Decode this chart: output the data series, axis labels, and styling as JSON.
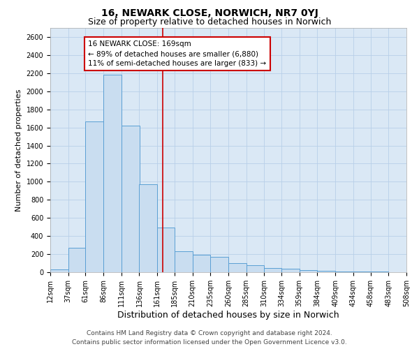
{
  "title": "16, NEWARK CLOSE, NORWICH, NR7 0YJ",
  "subtitle": "Size of property relative to detached houses in Norwich",
  "xlabel": "Distribution of detached houses by size in Norwich",
  "ylabel": "Number of detached properties",
  "footer1": "Contains HM Land Registry data © Crown copyright and database right 2024.",
  "footer2": "Contains public sector information licensed under the Open Government Licence v3.0.",
  "annotation_line1": "16 NEWARK CLOSE: 169sqm",
  "annotation_line2": "← 89% of detached houses are smaller (6,880)",
  "annotation_line3": "11% of semi-detached houses are larger (833) →",
  "bar_left_edges": [
    12,
    37,
    61,
    86,
    111,
    136,
    161,
    185,
    210,
    235,
    260,
    285,
    310,
    334,
    359,
    384,
    409,
    434,
    458,
    483
  ],
  "bar_widths": [
    25,
    24,
    25,
    25,
    25,
    25,
    24,
    25,
    25,
    25,
    25,
    25,
    24,
    25,
    25,
    25,
    25,
    24,
    25,
    25
  ],
  "bar_heights": [
    30,
    270,
    1670,
    2180,
    1620,
    970,
    490,
    230,
    190,
    170,
    100,
    80,
    45,
    35,
    25,
    15,
    10,
    8,
    5,
    3
  ],
  "bar_facecolor": "#c9ddf0",
  "bar_edgecolor": "#5a9fd4",
  "bar_linewidth": 0.7,
  "grid_color": "#b8cfe8",
  "background_color": "#dae8f5",
  "vline_x": 169,
  "vline_color": "#cc0000",
  "vline_linewidth": 1.2,
  "annotation_box_color": "#cc0000",
  "annotation_box_facecolor": "white",
  "ylim": [
    0,
    2700
  ],
  "yticks": [
    0,
    200,
    400,
    600,
    800,
    1000,
    1200,
    1400,
    1600,
    1800,
    2000,
    2200,
    2400,
    2600
  ],
  "xtick_labels": [
    "12sqm",
    "37sqm",
    "61sqm",
    "86sqm",
    "111sqm",
    "136sqm",
    "161sqm",
    "185sqm",
    "210sqm",
    "235sqm",
    "260sqm",
    "285sqm",
    "310sqm",
    "334sqm",
    "359sqm",
    "384sqm",
    "409sqm",
    "434sqm",
    "458sqm",
    "483sqm",
    "508sqm"
  ],
  "title_fontsize": 10,
  "subtitle_fontsize": 9,
  "xlabel_fontsize": 9,
  "ylabel_fontsize": 8,
  "tick_fontsize": 7,
  "footer_fontsize": 6.5,
  "annotation_fontsize": 7.5
}
